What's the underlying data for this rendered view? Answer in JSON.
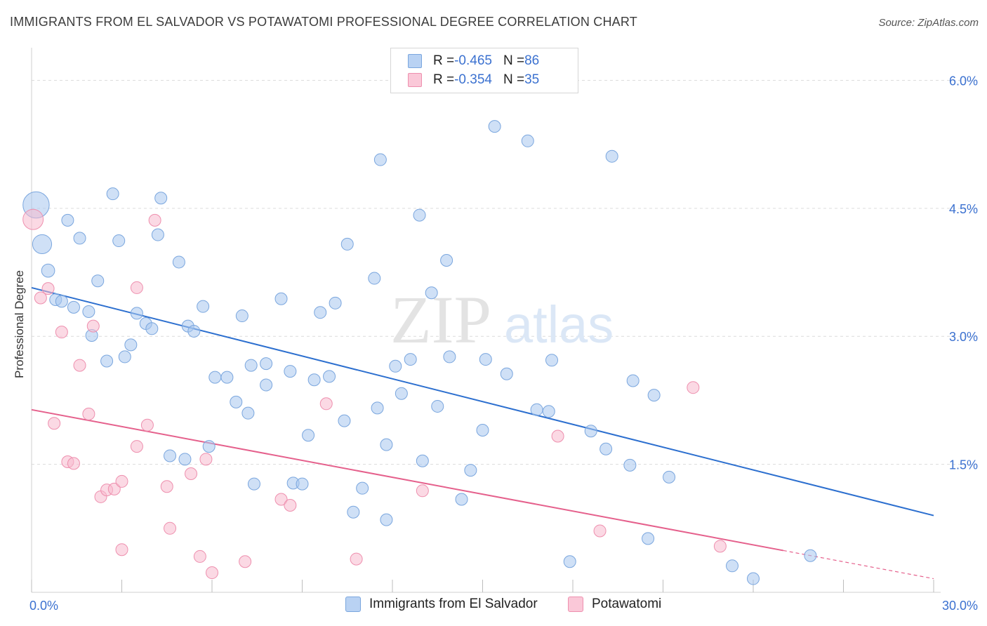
{
  "chart_data": {
    "type": "scatter",
    "title": "IMMIGRANTS FROM EL SALVADOR VS POTAWATOMI PROFESSIONAL DEGREE CORRELATION CHART",
    "source": "Source: ZipAtlas.com",
    "xlabel": "",
    "ylabel": "Professional Degree",
    "xlim": [
      0,
      30
    ],
    "ylim": [
      0,
      6.3
    ],
    "x_tick_labels": [
      {
        "value": 0,
        "label": "0.0%"
      },
      {
        "value": 30,
        "label": "30.0%"
      }
    ],
    "y_tick_labels": [
      {
        "value": 1.5,
        "label": "1.5%"
      },
      {
        "value": 3.0,
        "label": "3.0%"
      },
      {
        "value": 4.5,
        "label": "4.5%"
      },
      {
        "value": 6.0,
        "label": "6.0%"
      }
    ],
    "watermark": {
      "part1": "ZIP",
      "part2": "atlas"
    },
    "legend": [
      {
        "r_label": "R = ",
        "r_value": "-0.465",
        "n_label": "N = ",
        "n_value": "86"
      },
      {
        "r_label": "R = ",
        "r_value": "-0.354",
        "n_label": "N = ",
        "n_value": "35"
      }
    ],
    "series": [
      {
        "name": "Immigrants from El Salvador",
        "color": "#a8c6ef",
        "stroke": "#7aa6de",
        "line_color": "#2c6fcf",
        "trend": {
          "x0": 0,
          "y0": 3.57,
          "x1": 30,
          "y1": 0.9,
          "solid_until": 30
        },
        "points": [
          [
            0.15,
            4.54,
            2.2
          ],
          [
            0.35,
            4.08,
            1.6
          ],
          [
            0.55,
            3.77,
            1.1
          ],
          [
            1.2,
            4.36,
            1.0
          ],
          [
            1.6,
            4.15,
            1.0
          ],
          [
            2.7,
            4.67,
            1.0
          ],
          [
            4.3,
            4.62,
            1.0
          ],
          [
            2.9,
            4.12,
            1.0
          ],
          [
            4.2,
            4.19,
            1.0
          ],
          [
            4.9,
            3.87,
            1.0
          ],
          [
            2.2,
            3.65,
            1.0
          ],
          [
            0.8,
            3.43,
            1.0
          ],
          [
            1.0,
            3.41,
            1.0
          ],
          [
            1.4,
            3.34,
            1.0
          ],
          [
            1.9,
            3.29,
            1.0
          ],
          [
            3.5,
            3.27,
            1.0
          ],
          [
            3.8,
            3.15,
            1.0
          ],
          [
            4.0,
            3.09,
            1.0
          ],
          [
            5.2,
            3.12,
            1.0
          ],
          [
            5.4,
            3.06,
            1.0
          ],
          [
            5.7,
            3.35,
            1.0
          ],
          [
            2.0,
            3.01,
            1.0
          ],
          [
            3.3,
            2.9,
            1.0
          ],
          [
            3.1,
            2.76,
            1.0
          ],
          [
            2.5,
            2.71,
            1.0
          ],
          [
            7.0,
            3.24,
            1.0
          ],
          [
            8.3,
            3.44,
            1.0
          ],
          [
            9.6,
            3.28,
            1.0
          ],
          [
            10.1,
            3.39,
            1.0
          ],
          [
            10.5,
            4.08,
            1.0
          ],
          [
            11.4,
            3.68,
            1.0
          ],
          [
            11.6,
            5.07,
            1.0
          ],
          [
            12.9,
            4.42,
            1.0
          ],
          [
            13.3,
            3.51,
            1.0
          ],
          [
            13.8,
            3.89,
            1.0
          ],
          [
            15.4,
            5.46,
            1.0
          ],
          [
            16.5,
            5.29,
            1.0
          ],
          [
            19.3,
            5.11,
            1.0
          ],
          [
            6.1,
            2.52,
            1.0
          ],
          [
            6.5,
            2.52,
            1.0
          ],
          [
            7.3,
            2.66,
            1.0
          ],
          [
            7.8,
            2.68,
            1.0
          ],
          [
            8.6,
            2.59,
            1.0
          ],
          [
            7.8,
            2.43,
            1.0
          ],
          [
            9.4,
            2.49,
            1.0
          ],
          [
            9.9,
            2.53,
            1.0
          ],
          [
            12.1,
            2.65,
            1.0
          ],
          [
            12.6,
            2.73,
            1.0
          ],
          [
            13.9,
            2.76,
            1.0
          ],
          [
            15.1,
            2.73,
            1.0
          ],
          [
            15.8,
            2.56,
            1.0
          ],
          [
            17.3,
            2.72,
            1.0
          ],
          [
            6.8,
            2.23,
            1.0
          ],
          [
            7.2,
            2.1,
            1.0
          ],
          [
            11.5,
            2.16,
            1.0
          ],
          [
            12.3,
            2.33,
            1.0
          ],
          [
            13.5,
            2.18,
            1.0
          ],
          [
            16.8,
            2.14,
            1.0
          ],
          [
            17.2,
            2.12,
            1.0
          ],
          [
            10.4,
            2.01,
            1.0
          ],
          [
            9.2,
            1.84,
            1.0
          ],
          [
            11.8,
            1.73,
            1.0
          ],
          [
            15.0,
            1.9,
            1.0
          ],
          [
            18.6,
            1.89,
            1.0
          ],
          [
            20.0,
            2.48,
            1.0
          ],
          [
            20.7,
            2.31,
            1.0
          ],
          [
            4.6,
            1.6,
            1.0
          ],
          [
            5.1,
            1.56,
            1.0
          ],
          [
            5.9,
            1.71,
            1.0
          ],
          [
            13.0,
            1.54,
            1.0
          ],
          [
            14.6,
            1.43,
            1.0
          ],
          [
            19.1,
            1.68,
            1.0
          ],
          [
            19.9,
            1.49,
            1.0
          ],
          [
            21.2,
            1.35,
            1.0
          ],
          [
            7.4,
            1.27,
            1.0
          ],
          [
            8.7,
            1.28,
            1.0
          ],
          [
            9.0,
            1.27,
            1.0
          ],
          [
            11.0,
            1.22,
            1.0
          ],
          [
            14.3,
            1.09,
            1.0
          ],
          [
            10.7,
            0.94,
            1.0
          ],
          [
            11.8,
            0.85,
            1.0
          ],
          [
            17.9,
            0.36,
            1.0
          ],
          [
            20.5,
            0.63,
            1.0
          ],
          [
            25.9,
            0.43,
            1.0
          ],
          [
            23.3,
            0.31,
            1.0
          ],
          [
            24.0,
            0.16,
            1.0
          ]
        ]
      },
      {
        "name": "Potawatomi",
        "color": "#f7b9ce",
        "stroke": "#ee8fae",
        "line_color": "#e5608c",
        "trend": {
          "x0": 0,
          "y0": 2.14,
          "x1": 30,
          "y1": 0.16,
          "solid_until": 25.0
        },
        "points": [
          [
            0.05,
            4.37,
            1.7
          ],
          [
            0.3,
            3.45,
            1.0
          ],
          [
            0.55,
            3.56,
            1.0
          ],
          [
            1.0,
            3.05,
            1.0
          ],
          [
            2.05,
            3.12,
            1.0
          ],
          [
            3.5,
            3.57,
            1.0
          ],
          [
            4.1,
            4.36,
            1.0
          ],
          [
            1.6,
            2.66,
            1.0
          ],
          [
            0.75,
            1.98,
            1.0
          ],
          [
            1.9,
            2.09,
            1.0
          ],
          [
            3.85,
            1.96,
            1.0
          ],
          [
            1.2,
            1.53,
            1.0
          ],
          [
            1.4,
            1.51,
            1.0
          ],
          [
            3.5,
            1.71,
            1.0
          ],
          [
            5.8,
            1.56,
            1.0
          ],
          [
            2.3,
            1.12,
            1.0
          ],
          [
            2.5,
            1.2,
            1.0
          ],
          [
            2.75,
            1.21,
            1.0
          ],
          [
            3.0,
            1.3,
            1.0
          ],
          [
            4.5,
            1.24,
            1.0
          ],
          [
            5.3,
            1.39,
            1.0
          ],
          [
            8.3,
            1.09,
            1.0
          ],
          [
            8.6,
            1.02,
            1.0
          ],
          [
            9.8,
            2.21,
            1.0
          ],
          [
            13.0,
            1.19,
            1.0
          ],
          [
            4.6,
            0.75,
            1.0
          ],
          [
            3.0,
            0.5,
            1.0
          ],
          [
            5.6,
            0.42,
            1.0
          ],
          [
            6.0,
            0.23,
            1.0
          ],
          [
            7.1,
            0.36,
            1.0
          ],
          [
            10.8,
            0.39,
            1.0
          ],
          [
            17.5,
            1.83,
            1.0
          ],
          [
            18.9,
            0.72,
            1.0
          ],
          [
            22.0,
            2.4,
            1.0
          ],
          [
            22.9,
            0.54,
            1.0
          ]
        ]
      }
    ]
  }
}
